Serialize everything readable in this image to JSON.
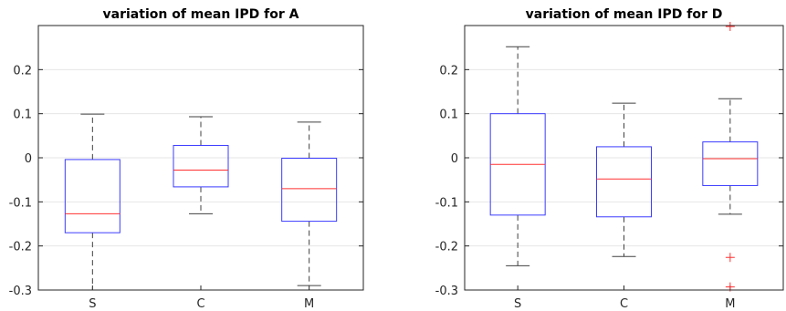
{
  "chart_data": [
    {
      "type": "box",
      "title": "variation of mean IPD for A",
      "xlabel": "",
      "ylabel": "",
      "categories": [
        "S",
        "C",
        "M"
      ],
      "ylim": [
        -0.3,
        0.3
      ],
      "yticks": [
        -0.3,
        -0.2,
        -0.1,
        0,
        0.1,
        0.2
      ],
      "ytick_labels": [
        "-0.3",
        "-0.2",
        "-0.1",
        "0",
        "0.1",
        "0.2"
      ],
      "grid": "y",
      "boxes": [
        {
          "category": "S",
          "whisker_low": -0.3,
          "q1": -0.17,
          "median": -0.127,
          "q3": -0.004,
          "whisker_high": 0.099,
          "outliers": []
        },
        {
          "category": "C",
          "whisker_low": -0.127,
          "q1": -0.066,
          "median": -0.028,
          "q3": 0.028,
          "whisker_high": 0.093,
          "outliers": []
        },
        {
          "category": "M",
          "whisker_low": -0.29,
          "q1": -0.144,
          "median": -0.07,
          "q3": -0.001,
          "whisker_high": 0.081,
          "outliers": []
        }
      ]
    },
    {
      "type": "box",
      "title": "variation of mean IPD for D",
      "xlabel": "",
      "ylabel": "",
      "categories": [
        "S",
        "C",
        "M"
      ],
      "ylim": [
        -0.3,
        0.3
      ],
      "yticks": [
        -0.3,
        -0.2,
        -0.1,
        0,
        0.1,
        0.2
      ],
      "ytick_labels": [
        "-0.3",
        "-0.2",
        "-0.1",
        "0",
        "0.1",
        "0.2"
      ],
      "grid": "y",
      "boxes": [
        {
          "category": "S",
          "whisker_low": -0.245,
          "q1": -0.13,
          "median": -0.015,
          "q3": 0.1,
          "whisker_high": 0.252,
          "outliers": []
        },
        {
          "category": "C",
          "whisker_low": -0.224,
          "q1": -0.134,
          "median": -0.048,
          "q3": 0.025,
          "whisker_high": 0.124,
          "outliers": []
        },
        {
          "category": "M",
          "whisker_low": -0.128,
          "q1": -0.063,
          "median": -0.002,
          "q3": 0.036,
          "whisker_high": 0.134,
          "outliers": [
            0.298,
            -0.226,
            -0.293
          ]
        }
      ]
    }
  ],
  "colors": {
    "box": "#3b3bff",
    "median": "#ff3030",
    "whisker": "#404040",
    "outlier": "#ff3030",
    "grid": "#e6e6e6",
    "axis": "#262626"
  }
}
